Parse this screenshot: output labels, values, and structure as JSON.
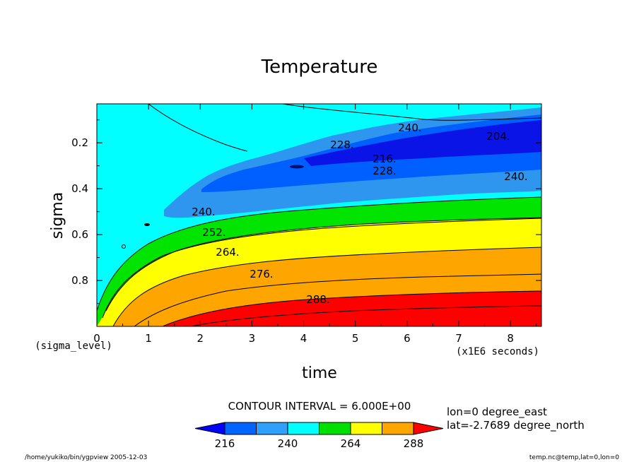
{
  "chart_data": {
    "type": "contour",
    "title": "Temperature",
    "xlabel": "time",
    "ylabel": "sigma",
    "x_ticks": [
      "0",
      "1",
      "2",
      "3",
      "4",
      "5",
      "6",
      "7",
      "8"
    ],
    "y_ticks": [
      "0.2",
      "0.4",
      "0.6",
      "0.8"
    ],
    "x_units": "(x1E6 seconds)",
    "y_units": "(sigma_level)",
    "xlim": [
      0,
      8.6
    ],
    "ylim_sigma": [
      0.03,
      1.0
    ],
    "y_inverted": true,
    "contour_interval": "CONTOUR INTERVAL = 6.000E+00",
    "contour_labels": [
      "240.",
      "204.",
      "228.",
      "216.",
      "228.",
      "240.",
      "240.",
      "252.",
      "264.",
      "276.",
      "288."
    ],
    "colorbar": {
      "tick_labels": [
        "216",
        "240",
        "264",
        "288"
      ],
      "colors": [
        "#0000ff",
        "#0064ff",
        "#30a0ff",
        "#00ffff",
        "#00e000",
        "#ffff00",
        "#ffa500",
        "#ff0000"
      ]
    },
    "fill_colors": {
      "band_204_216": "#0a14e6",
      "band_216_228": "#0060ff",
      "band_228_240": "#2f96f0",
      "band_240_252": "#00ffff",
      "band_252_264": "#00e400",
      "band_264_276": "#ffff00",
      "band_276_288": "#ffa500",
      "band_288_300": "#ff0000"
    },
    "annotations": {
      "lon": "lon=0 degree_east",
      "lat": "lat=-2.7689 degree_north",
      "path": "/home/yukiko/bin/ygpview  2005-12-03",
      "source": "temp.nc@temp,lat=0,lon=0"
    }
  }
}
